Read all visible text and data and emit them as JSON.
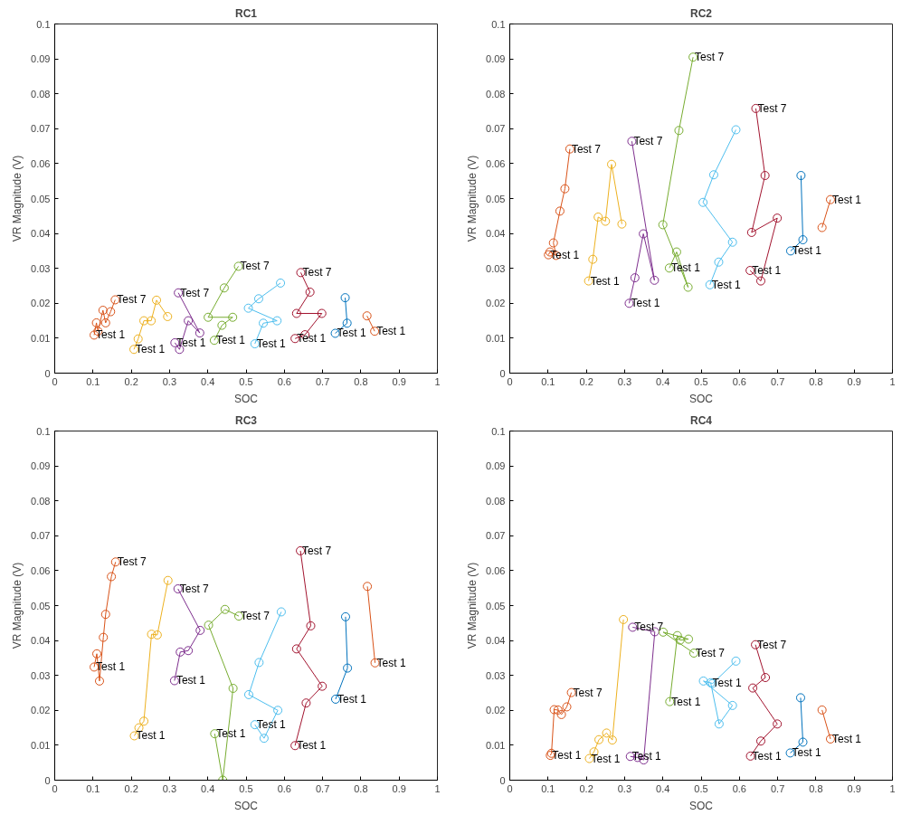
{
  "chart_data": [
    {
      "type": "line",
      "title": "RC1",
      "xlabel": "SOC",
      "ylabel": "VR Magnitude (V)",
      "xlim": [
        0,
        1
      ],
      "ylim": [
        0,
        0.1
      ],
      "xticks": [
        0,
        0.1,
        0.2,
        0.3,
        0.4,
        0.5,
        0.6,
        0.7,
        0.8,
        0.9,
        1
      ],
      "yticks": [
        0,
        0.01,
        0.02,
        0.03,
        0.04,
        0.05,
        0.06,
        0.07,
        0.08,
        0.09,
        0.1
      ],
      "grid": false,
      "marker": "circle",
      "line_style": "solid",
      "series": [
        {
          "color": "#d95319",
          "x": [
            0.103,
            0.109,
            0.113,
            0.126,
            0.133,
            0.146,
            0.158
          ],
          "values": [
            0.0109,
            0.0144,
            0.012,
            0.018,
            0.0144,
            0.0176,
            0.021
          ]
        },
        {
          "color": "#edb120",
          "x": [
            0.207,
            0.218,
            0.233,
            0.252,
            0.266,
            0.295
          ],
          "values": [
            0.0068,
            0.0098,
            0.015,
            0.015,
            0.0209,
            0.0162
          ]
        },
        {
          "color": "#7e2f8e",
          "x": [
            0.314,
            0.326,
            0.349,
            0.379,
            0.323
          ],
          "values": [
            0.0087,
            0.0068,
            0.015,
            0.0115,
            0.023
          ]
        },
        {
          "color": "#77ac30",
          "x": [
            0.417,
            0.437,
            0.465,
            0.401,
            0.443,
            0.48
          ],
          "values": [
            0.0094,
            0.0137,
            0.016,
            0.016,
            0.0244,
            0.0306
          ]
        },
        {
          "color": "#4dbeee",
          "x": [
            0.523,
            0.545,
            0.581,
            0.506,
            0.533,
            0.59
          ],
          "values": [
            0.0084,
            0.0143,
            0.015,
            0.0186,
            0.0213,
            0.0258
          ]
        },
        {
          "color": "#a2142f",
          "x": [
            0.628,
            0.654,
            0.698,
            0.632,
            0.667,
            0.643
          ],
          "values": [
            0.0099,
            0.011,
            0.0171,
            0.0171,
            0.0232,
            0.0288
          ]
        },
        {
          "color": "#0072bd",
          "x": [
            0.733,
            0.764,
            0.759
          ],
          "values": [
            0.0114,
            0.0143,
            0.0216
          ]
        },
        {
          "color": "#d95319",
          "x": [
            0.836,
            0.816
          ],
          "values": [
            0.012,
            0.0164
          ]
        }
      ],
      "annotations": [
        {
          "text": "Test 1",
          "x": 0.103,
          "y": 0.0109
        },
        {
          "text": "Test 7",
          "x": 0.158,
          "y": 0.021
        },
        {
          "text": "Test 1",
          "x": 0.207,
          "y": 0.0068
        },
        {
          "text": "Test 1",
          "x": 0.314,
          "y": 0.0087
        },
        {
          "text": "Test 7",
          "x": 0.323,
          "y": 0.023
        },
        {
          "text": "Test 1",
          "x": 0.417,
          "y": 0.0094
        },
        {
          "text": "Test 7",
          "x": 0.48,
          "y": 0.0306
        },
        {
          "text": "Test 1",
          "x": 0.523,
          "y": 0.0084
        },
        {
          "text": "Test 1",
          "x": 0.628,
          "y": 0.0099
        },
        {
          "text": "Test 7",
          "x": 0.643,
          "y": 0.0288
        },
        {
          "text": "Test 1",
          "x": 0.733,
          "y": 0.0114
        },
        {
          "text": "Test 1",
          "x": 0.836,
          "y": 0.012
        }
      ]
    },
    {
      "type": "line",
      "title": "RC2",
      "xlabel": "SOC",
      "ylabel": "VR Magnitude (V)",
      "xlim": [
        0,
        1
      ],
      "ylim": [
        0,
        0.1
      ],
      "xticks": [
        0,
        0.1,
        0.2,
        0.3,
        0.4,
        0.5,
        0.6,
        0.7,
        0.8,
        0.9,
        1
      ],
      "yticks": [
        0,
        0.01,
        0.02,
        0.03,
        0.04,
        0.05,
        0.06,
        0.07,
        0.08,
        0.09,
        0.1
      ],
      "grid": false,
      "marker": "circle",
      "line_style": "solid",
      "series": [
        {
          "color": "#d95319",
          "x": [
            0.101,
            0.105,
            0.121,
            0.114,
            0.131,
            0.144,
            0.157
          ],
          "values": [
            0.0339,
            0.0347,
            0.0337,
            0.0373,
            0.0464,
            0.0528,
            0.0642
          ]
        },
        {
          "color": "#edb120",
          "x": [
            0.206,
            0.217,
            0.231,
            0.25,
            0.266,
            0.293
          ],
          "values": [
            0.0264,
            0.0326,
            0.0447,
            0.0435,
            0.0598,
            0.0427
          ]
        },
        {
          "color": "#7e2f8e",
          "x": [
            0.312,
            0.327,
            0.349,
            0.378,
            0.319
          ],
          "values": [
            0.02,
            0.0273,
            0.0399,
            0.0266,
            0.0664
          ]
        },
        {
          "color": "#77ac30",
          "x": [
            0.417,
            0.436,
            0.466,
            0.4,
            0.442,
            0.479
          ],
          "values": [
            0.0301,
            0.0347,
            0.0246,
            0.0425,
            0.0695,
            0.0905
          ]
        },
        {
          "color": "#4dbeee",
          "x": [
            0.523,
            0.546,
            0.582,
            0.505,
            0.533,
            0.591
          ],
          "values": [
            0.0253,
            0.0318,
            0.0375,
            0.0489,
            0.0568,
            0.0697
          ]
        },
        {
          "color": "#a2142f",
          "x": [
            0.628,
            0.656,
            0.699,
            0.632,
            0.667,
            0.643
          ],
          "values": [
            0.0294,
            0.0264,
            0.0444,
            0.0403,
            0.0566,
            0.0758
          ]
        },
        {
          "color": "#0072bd",
          "x": [
            0.734,
            0.766,
            0.761
          ],
          "values": [
            0.035,
            0.0382,
            0.0566
          ]
        },
        {
          "color": "#d95319",
          "x": [
            0.838,
            0.816
          ],
          "values": [
            0.0497,
            0.0417
          ]
        }
      ],
      "annotations": [
        {
          "text": "Test 1",
          "x": 0.101,
          "y": 0.0339
        },
        {
          "text": "Test 7",
          "x": 0.157,
          "y": 0.0642
        },
        {
          "text": "Test 1",
          "x": 0.206,
          "y": 0.0264
        },
        {
          "text": "Test 1",
          "x": 0.312,
          "y": 0.02
        },
        {
          "text": "Test 7",
          "x": 0.319,
          "y": 0.0664
        },
        {
          "text": "Test 1",
          "x": 0.417,
          "y": 0.0301
        },
        {
          "text": "Test 7",
          "x": 0.479,
          "y": 0.0905
        },
        {
          "text": "Test 1",
          "x": 0.523,
          "y": 0.0253
        },
        {
          "text": "Test 1",
          "x": 0.628,
          "y": 0.0294
        },
        {
          "text": "Test 7",
          "x": 0.643,
          "y": 0.0758
        },
        {
          "text": "Test 1",
          "x": 0.734,
          "y": 0.035
        },
        {
          "text": "Test 1",
          "x": 0.838,
          "y": 0.0497
        }
      ]
    },
    {
      "type": "line",
      "title": "RC3",
      "xlabel": "SOC",
      "ylabel": "VR Magnitude (V)",
      "xlim": [
        0,
        1
      ],
      "ylim": [
        0,
        0.1
      ],
      "xticks": [
        0,
        0.1,
        0.2,
        0.3,
        0.4,
        0.5,
        0.6,
        0.7,
        0.8,
        0.9,
        1
      ],
      "yticks": [
        0,
        0.01,
        0.02,
        0.03,
        0.04,
        0.05,
        0.06,
        0.07,
        0.08,
        0.09,
        0.1
      ],
      "grid": false,
      "marker": "circle",
      "line_style": "solid",
      "series": [
        {
          "color": "#d95319",
          "x": [
            0.103,
            0.11,
            0.117,
            0.127,
            0.133,
            0.148,
            0.159
          ],
          "values": [
            0.0324,
            0.0362,
            0.0284,
            0.0409,
            0.0475,
            0.0583,
            0.0625
          ]
        },
        {
          "color": "#edb120",
          "x": [
            0.208,
            0.22,
            0.233,
            0.253,
            0.268,
            0.296
          ],
          "values": [
            0.0127,
            0.015,
            0.0169,
            0.0418,
            0.0416,
            0.0572
          ]
        },
        {
          "color": "#7e2f8e",
          "x": [
            0.313,
            0.328,
            0.349,
            0.38,
            0.322
          ],
          "values": [
            0.0285,
            0.0367,
            0.0371,
            0.0429,
            0.0548
          ]
        },
        {
          "color": "#77ac30",
          "x": [
            0.418,
            0.439,
            0.466,
            0.402,
            0.445,
            0.481
          ],
          "values": [
            0.0133,
            0,
            0.0263,
            0.0444,
            0.0489,
            0.047
          ]
        },
        {
          "color": "#4dbeee",
          "x": [
            0.523,
            0.547,
            0.583,
            0.507,
            0.534,
            0.592
          ],
          "values": [
            0.0159,
            0.012,
            0.02,
            0.0245,
            0.0337,
            0.0482
          ]
        },
        {
          "color": "#a2142f",
          "x": [
            0.628,
            0.657,
            0.699,
            0.632,
            0.669,
            0.642
          ],
          "values": [
            0.0099,
            0.0221,
            0.0269,
            0.0376,
            0.0442,
            0.0657
          ]
        },
        {
          "color": "#0072bd",
          "x": [
            0.734,
            0.765,
            0.76
          ],
          "values": [
            0.0232,
            0.0321,
            0.0468
          ]
        },
        {
          "color": "#d95319",
          "x": [
            0.837,
            0.817
          ],
          "values": [
            0.0336,
            0.0555
          ]
        }
      ],
      "annotations": [
        {
          "text": "Test 1",
          "x": 0.103,
          "y": 0.0324
        },
        {
          "text": "Test 7",
          "x": 0.159,
          "y": 0.0625
        },
        {
          "text": "Test 1",
          "x": 0.208,
          "y": 0.0127
        },
        {
          "text": "Test 1",
          "x": 0.313,
          "y": 0.0285
        },
        {
          "text": "Test 7",
          "x": 0.322,
          "y": 0.0548
        },
        {
          "text": "Test 1",
          "x": 0.418,
          "y": 0.0133
        },
        {
          "text": "Test 7",
          "x": 0.481,
          "y": 0.047
        },
        {
          "text": "Test 1",
          "x": 0.523,
          "y": 0.0159
        },
        {
          "text": "Test 1",
          "x": 0.628,
          "y": 0.0099
        },
        {
          "text": "Test 7",
          "x": 0.642,
          "y": 0.0657
        },
        {
          "text": "Test 1",
          "x": 0.734,
          "y": 0.0232
        },
        {
          "text": "Test 1",
          "x": 0.837,
          "y": 0.0336
        }
      ]
    },
    {
      "type": "line",
      "title": "RC4",
      "xlabel": "SOC",
      "ylabel": "VR Magnitude (V)",
      "xlim": [
        0,
        1
      ],
      "ylim": [
        0,
        0.1
      ],
      "xticks": [
        0,
        0.1,
        0.2,
        0.3,
        0.4,
        0.5,
        0.6,
        0.7,
        0.8,
        0.9,
        1
      ],
      "yticks": [
        0,
        0.01,
        0.02,
        0.03,
        0.04,
        0.05,
        0.06,
        0.07,
        0.08,
        0.09,
        0.1
      ],
      "grid": false,
      "marker": "circle",
      "line_style": "solid",
      "series": [
        {
          "color": "#d95319",
          "x": [
            0.106,
            0.109,
            0.116,
            0.126,
            0.135,
            0.149,
            0.161
          ],
          "values": [
            0.0071,
            0.0077,
            0.0202,
            0.0201,
            0.0188,
            0.021,
            0.0251
          ]
        },
        {
          "color": "#edb120",
          "x": [
            0.208,
            0.22,
            0.233,
            0.253,
            0.268,
            0.297
          ],
          "values": [
            0.0062,
            0.0081,
            0.0116,
            0.0135,
            0.0115,
            0.046
          ]
        },
        {
          "color": "#7e2f8e",
          "x": [
            0.315,
            0.334,
            0.35,
            0.379,
            0.321
          ],
          "values": [
            0.0068,
            0.0065,
            0.0058,
            0.0425,
            0.0438
          ]
        },
        {
          "color": "#77ac30",
          "x": [
            0.418,
            0.438,
            0.445,
            0.467,
            0.401,
            0.481
          ],
          "values": [
            0.0225,
            0.0414,
            0.0401,
            0.0404,
            0.0424,
            0.0364
          ]
        },
        {
          "color": "#4dbeee",
          "x": [
            0.525,
            0.547,
            0.582,
            0.506,
            0.53,
            0.591
          ],
          "values": [
            0.0279,
            0.0161,
            0.0214,
            0.0284,
            0.0277,
            0.0341
          ]
        },
        {
          "color": "#a2142f",
          "x": [
            0.629,
            0.656,
            0.699,
            0.635,
            0.668,
            0.642
          ],
          "values": [
            0.0069,
            0.0112,
            0.0161,
            0.0264,
            0.0294,
            0.0388
          ]
        },
        {
          "color": "#0072bd",
          "x": [
            0.733,
            0.766,
            0.76
          ],
          "values": [
            0.0078,
            0.0109,
            0.0236
          ]
        },
        {
          "color": "#d95319",
          "x": [
            0.838,
            0.816
          ],
          "values": [
            0.0118,
            0.0201
          ]
        }
      ],
      "annotations": [
        {
          "text": "Test 1",
          "x": 0.106,
          "y": 0.0071
        },
        {
          "text": "Test 7",
          "x": 0.161,
          "y": 0.0251
        },
        {
          "text": "Test 1",
          "x": 0.208,
          "y": 0.0062
        },
        {
          "text": "Test 1",
          "x": 0.315,
          "y": 0.0068
        },
        {
          "text": "Test 7",
          "x": 0.321,
          "y": 0.0438
        },
        {
          "text": "Test 1",
          "x": 0.418,
          "y": 0.0225
        },
        {
          "text": "Test 7",
          "x": 0.481,
          "y": 0.0364
        },
        {
          "text": "Test 1",
          "x": 0.525,
          "y": 0.0279
        },
        {
          "text": "Test 1",
          "x": 0.629,
          "y": 0.0069
        },
        {
          "text": "Test 7",
          "x": 0.642,
          "y": 0.0388
        },
        {
          "text": "Test 1",
          "x": 0.733,
          "y": 0.0078
        },
        {
          "text": "Test 1",
          "x": 0.838,
          "y": 0.0118
        }
      ]
    }
  ]
}
